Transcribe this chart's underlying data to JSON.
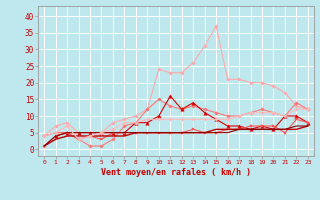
{
  "background_color": "#bfe8ee",
  "grid_color": "#ffffff",
  "xlabel": "Vent moyen/en rafales ( km/h )",
  "xlabel_color": "#cc0000",
  "tick_color": "#cc0000",
  "x_ticks": [
    0,
    1,
    2,
    3,
    4,
    5,
    6,
    7,
    8,
    9,
    10,
    11,
    12,
    13,
    14,
    15,
    16,
    17,
    18,
    19,
    20,
    21,
    22,
    23
  ],
  "ylim": [
    -2,
    43
  ],
  "xlim": [
    -0.5,
    23.5
  ],
  "yticks": [
    0,
    5,
    10,
    15,
    20,
    25,
    30,
    35,
    40
  ],
  "series": [
    {
      "color": "#ffaaaa",
      "lw": 0.8,
      "marker": "D",
      "ms": 1.8,
      "data": [
        4,
        7,
        8,
        5,
        5,
        5,
        8,
        9,
        10,
        12,
        24,
        23,
        23,
        26,
        31,
        37,
        21,
        21,
        20,
        20,
        19,
        17,
        13,
        12
      ]
    },
    {
      "color": "#ff7777",
      "lw": 0.8,
      "marker": "D",
      "ms": 1.8,
      "data": [
        1,
        4,
        5,
        3,
        1,
        1,
        3,
        7,
        8,
        12,
        15,
        13,
        12,
        13,
        12,
        11,
        10,
        10,
        11,
        12,
        11,
        10,
        14,
        12
      ]
    },
    {
      "color": "#dd0000",
      "lw": 0.8,
      "marker": "^",
      "ms": 2.5,
      "data": [
        null,
        4,
        5,
        5,
        5,
        5,
        5,
        5,
        8,
        8,
        10,
        16,
        12,
        14,
        11,
        9,
        7,
        7,
        6,
        7,
        6,
        10,
        10,
        8
      ]
    },
    {
      "color": "#ff5555",
      "lw": 0.8,
      "marker": "s",
      "ms": 1.8,
      "data": [
        4,
        5,
        5,
        3,
        4,
        3,
        5,
        5,
        5,
        5,
        5,
        5,
        5,
        6,
        5,
        5,
        6,
        6,
        7,
        7,
        7,
        5,
        9,
        8
      ]
    },
    {
      "color": "#bb0000",
      "lw": 1.0,
      "marker": null,
      "ms": 0,
      "data": [
        1,
        3,
        4,
        4,
        4,
        4,
        4,
        4,
        5,
        5,
        5,
        5,
        5,
        5,
        5,
        6,
        6,
        6,
        6,
        6,
        6,
        6,
        6,
        7
      ]
    },
    {
      "color": "#880000",
      "lw": 0.8,
      "marker": null,
      "ms": 0,
      "data": [
        1,
        4,
        5,
        5,
        5,
        5,
        5,
        5,
        5,
        5,
        5,
        5,
        5,
        5,
        5,
        5,
        5,
        6,
        6,
        6,
        6,
        6,
        7,
        7
      ]
    },
    {
      "color": "#ffbbbb",
      "lw": 0.8,
      "marker": "D",
      "ms": 1.8,
      "data": [
        4,
        5,
        7,
        3,
        4,
        5,
        6,
        8,
        8,
        9,
        9,
        9,
        9,
        9,
        9,
        9,
        9,
        10,
        11,
        11,
        11,
        10,
        12,
        12
      ]
    }
  ]
}
